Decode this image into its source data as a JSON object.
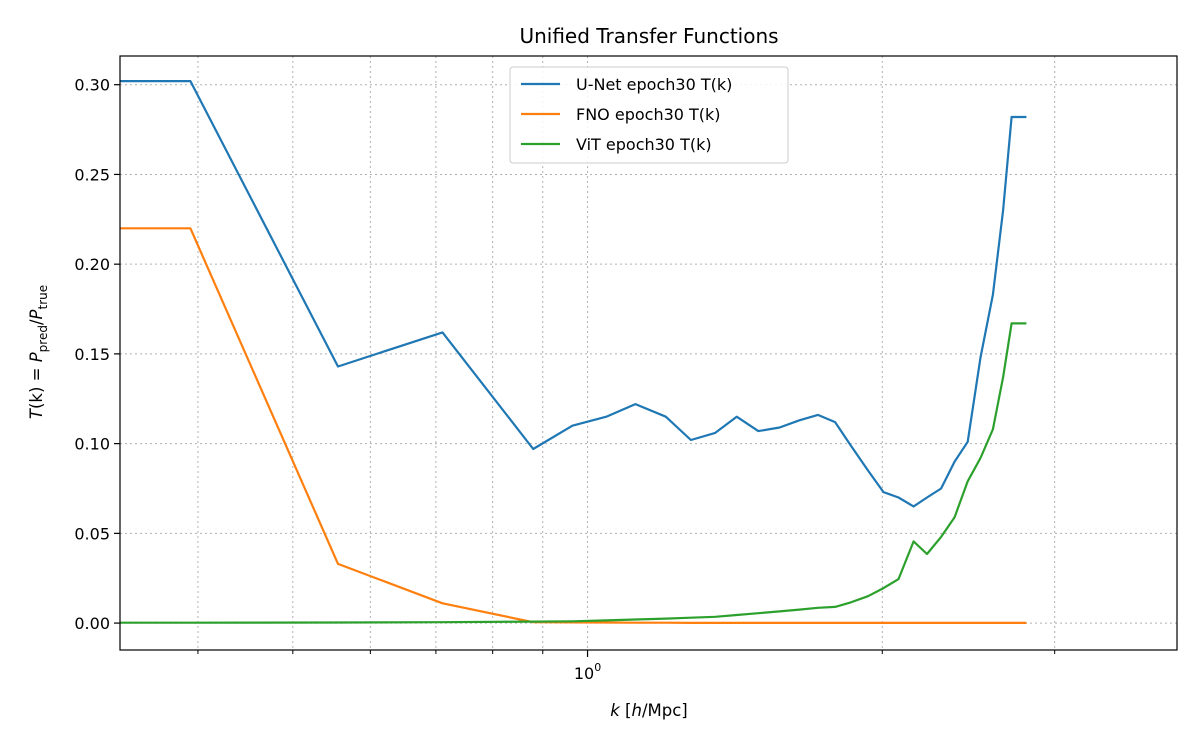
{
  "chart_data": {
    "type": "line",
    "title": "Unified Transfer Functions",
    "xlabel_italic": "k",
    "xlabel_rest_open": " [",
    "xlabel_h": "h",
    "xlabel_rest_close": "/Mpc]",
    "ylabel_T": "T",
    "ylabel_k": "(k) = ",
    "ylabel_P": "P",
    "ylabel_sub_pred": "pred",
    "ylabel_slash": "/",
    "ylabel_sub_true": "true",
    "x_scale": "log",
    "xlim": [
      0.333,
      4.0
    ],
    "ylim": [
      -0.015,
      0.316
    ],
    "x_major_ticks": [
      {
        "value": 1.0,
        "base": "10",
        "exp": "0"
      }
    ],
    "x_minor_ticks": [
      0.4,
      0.5,
      0.6,
      0.7,
      0.8,
      0.9,
      2,
      3
    ],
    "y_ticks": [
      {
        "value": 0.0,
        "label": "0.00"
      },
      {
        "value": 0.05,
        "label": "0.05"
      },
      {
        "value": 0.1,
        "label": "0.10"
      },
      {
        "value": 0.15,
        "label": "0.15"
      },
      {
        "value": 0.2,
        "label": "0.20"
      },
      {
        "value": 0.25,
        "label": "0.25"
      },
      {
        "value": 0.3,
        "label": "0.30"
      }
    ],
    "grid": true,
    "legend_position": "upper center",
    "series": [
      {
        "name": "U-Net epoch30 T(k)",
        "color": "#1f77b4",
        "x": [
          0.3,
          0.393,
          0.556,
          0.711,
          0.88,
          0.965,
          1.045,
          1.119,
          1.202,
          1.275,
          1.35,
          1.42,
          1.494,
          1.571,
          1.646,
          1.719,
          1.79,
          1.857,
          1.934,
          2.006,
          2.078,
          2.153,
          2.222,
          2.297,
          2.371,
          2.445,
          2.52,
          2.594,
          2.657,
          2.711,
          2.757,
          2.807
        ],
        "y": [
          0.302,
          0.302,
          0.143,
          0.162,
          0.097,
          0.11,
          0.115,
          0.122,
          0.115,
          0.102,
          0.106,
          0.115,
          0.107,
          0.109,
          0.113,
          0.116,
          0.112,
          0.099,
          0.085,
          0.073,
          0.07,
          0.065,
          0.07,
          0.075,
          0.09,
          0.101,
          0.148,
          0.183,
          0.23,
          0.282,
          0.282,
          0.282
        ]
      },
      {
        "name": "FNO epoch30 T(k)",
        "color": "#ff7f0e",
        "x": [
          0.3,
          0.393,
          0.556,
          0.711,
          0.88,
          0.965,
          1.045,
          1.119,
          1.202,
          1.275,
          1.35,
          1.42,
          1.494,
          1.571,
          1.646,
          1.719,
          1.79,
          1.857,
          1.934,
          2.006,
          2.078,
          2.153,
          2.222,
          2.297,
          2.371,
          2.445,
          2.52,
          2.594,
          2.657,
          2.711,
          2.757,
          2.807
        ],
        "y": [
          0.22,
          0.22,
          0.033,
          0.011,
          0.0005,
          0.0004,
          0.0003,
          0.0002,
          0.0002,
          0.0001,
          0.0001,
          0.0001,
          0.0001,
          0.0001,
          0.0001,
          0.0001,
          0.0001,
          0.0001,
          0.0001,
          0.0001,
          0.0001,
          0.0001,
          0.0001,
          0.0001,
          0.0001,
          0.0001,
          0.0001,
          0.0001,
          0.0001,
          0.0001,
          0.0001,
          0.0001
        ]
      },
      {
        "name": "ViT epoch30 T(k)",
        "color": "#2ca02c",
        "x": [
          0.3,
          0.393,
          0.556,
          0.711,
          0.88,
          0.965,
          1.045,
          1.119,
          1.202,
          1.275,
          1.35,
          1.42,
          1.494,
          1.571,
          1.646,
          1.719,
          1.79,
          1.857,
          1.934,
          2.006,
          2.078,
          2.153,
          2.222,
          2.297,
          2.371,
          2.445,
          2.52,
          2.594,
          2.657,
          2.711,
          2.757,
          2.807
        ],
        "y": [
          0.0002,
          0.0002,
          0.0003,
          0.0005,
          0.0008,
          0.001,
          0.0015,
          0.002,
          0.0025,
          0.003,
          0.0035,
          0.0045,
          0.0055,
          0.0065,
          0.0075,
          0.0085,
          0.009,
          0.0115,
          0.015,
          0.0195,
          0.0245,
          0.0455,
          0.0385,
          0.048,
          0.059,
          0.079,
          0.092,
          0.108,
          0.137,
          0.167,
          0.167,
          0.167
        ]
      }
    ]
  }
}
